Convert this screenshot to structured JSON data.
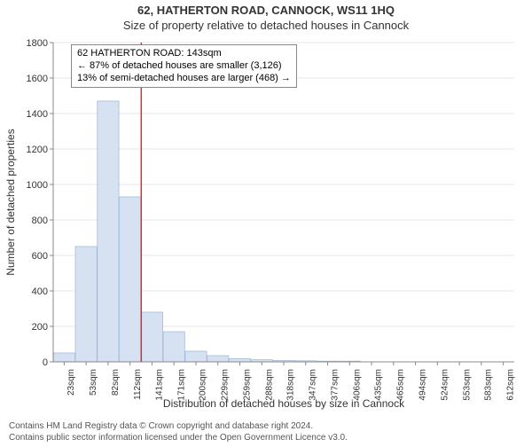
{
  "title_line1": "62, HATHERTON ROAD, CANNOCK, WS11 1HQ",
  "title_line2": "Size of property relative to detached houses in Cannock",
  "y_axis_label": "Number of detached properties",
  "x_axis_label": "Distribution of detached houses by size in Cannock",
  "infobox": {
    "line1": "62 HATHERTON ROAD: 143sqm",
    "line2": "← 87% of detached houses are smaller (3,126)",
    "line3": "13% of semi-detached houses are larger (468) →"
  },
  "chart": {
    "type": "bar",
    "categories": [
      "23sqm",
      "53sqm",
      "82sqm",
      "112sqm",
      "141sqm",
      "171sqm",
      "200sqm",
      "229sqm",
      "259sqm",
      "288sqm",
      "318sqm",
      "347sqm",
      "377sqm",
      "406sqm",
      "435sqm",
      "465sqm",
      "494sqm",
      "524sqm",
      "553sqm",
      "583sqm",
      "612sqm"
    ],
    "values": [
      50,
      650,
      1470,
      930,
      280,
      170,
      60,
      35,
      18,
      12,
      8,
      6,
      4,
      4,
      0,
      0,
      0,
      0,
      0,
      0,
      0
    ],
    "ylim": [
      0,
      1800
    ],
    "ytick_step": 200,
    "marker_x_index": 4,
    "bar_fill": "#d6e1f2",
    "bar_stroke": "#a5bcd9",
    "marker_color": "#d93030",
    "grid_color": "#d0d0d0",
    "axis_color": "#888888",
    "background_color": "#ffffff"
  },
  "footer": {
    "line1": "Contains HM Land Registry data © Crown copyright and database right 2024.",
    "line2": "Contains public sector information licensed under the Open Government Licence v3.0."
  }
}
